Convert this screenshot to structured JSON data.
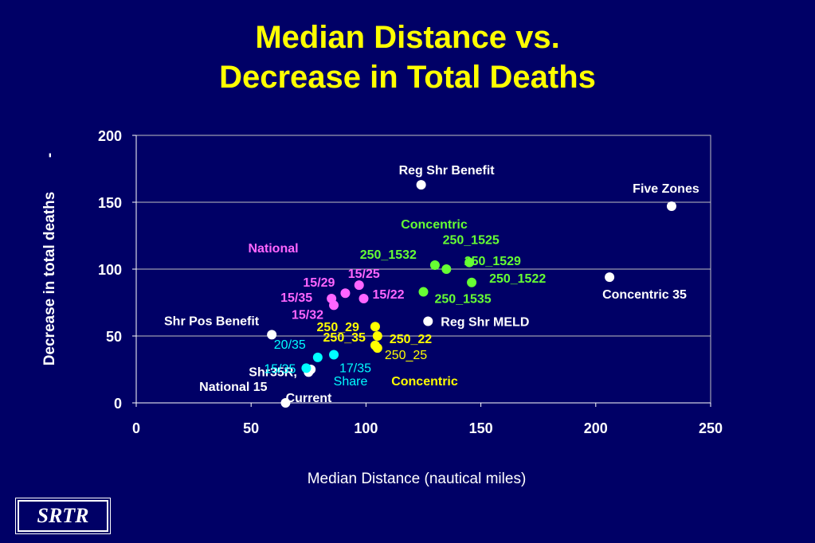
{
  "page": {
    "title_line1": "Median Distance vs.",
    "title_line2": "Decrease in Total Deaths",
    "logo_text": "SRTR",
    "background": "#000066"
  },
  "chart_data": {
    "type": "scatter",
    "title": "Median Distance vs. Decrease in Total Deaths",
    "xlabel": "Median Distance (nautical miles)",
    "ylabel": "Decrease in total deaths",
    "ylabel_suffix": "-",
    "xlim": [
      0,
      250
    ],
    "ylim": [
      0,
      200
    ],
    "x_ticks": [
      0,
      50,
      100,
      150,
      200,
      250
    ],
    "y_ticks": [
      0,
      50,
      100,
      150,
      200
    ],
    "grid": "horizontal",
    "legend": "none",
    "group_labels": [
      {
        "text": "National",
        "color": "#ff66ff"
      },
      {
        "text": "Concentric",
        "color": "#66ff33"
      },
      {
        "text": "Concentric",
        "color": "#ffff00"
      },
      {
        "text": "Share",
        "color": "#00ffff"
      }
    ],
    "colors": {
      "white": "#ffffff",
      "magenta": "#ff66ff",
      "green": "#66ff33",
      "yellow": "#ffff00",
      "cyan": "#00ffff"
    },
    "points": [
      {
        "x": 124,
        "y": 163,
        "color": "white",
        "label": "Reg Shr Benefit"
      },
      {
        "x": 233,
        "y": 147,
        "color": "white",
        "label": "Five Zones"
      },
      {
        "x": 206,
        "y": 94,
        "color": "white",
        "label": "Concentric 35"
      },
      {
        "x": 127,
        "y": 61,
        "color": "white",
        "label": "Reg Shr MELD"
      },
      {
        "x": 59,
        "y": 51,
        "color": "white",
        "label": "Shr Pos Benefit"
      },
      {
        "x": 65,
        "y": 0,
        "color": "white",
        "label": "Current"
      },
      {
        "x": 75,
        "y": 23,
        "color": "white",
        "label": "Shr35R,"
      },
      {
        "x": 76,
        "y": 25,
        "color": "white",
        "label": "National 15"
      },
      {
        "x": 145,
        "y": 105,
        "color": "green",
        "label": "250_1525"
      },
      {
        "x": 130,
        "y": 103,
        "color": "green",
        "label": "250_1532"
      },
      {
        "x": 135,
        "y": 100,
        "color": "green",
        "label": "250_1529"
      },
      {
        "x": 146,
        "y": 90,
        "color": "green",
        "label": "250_1522"
      },
      {
        "x": 125,
        "y": 83,
        "color": "green",
        "label": "250_1535"
      },
      {
        "x": 97,
        "y": 88,
        "color": "magenta",
        "label": "15/25"
      },
      {
        "x": 91,
        "y": 82,
        "color": "magenta",
        "label": "15/29"
      },
      {
        "x": 99,
        "y": 78,
        "color": "magenta",
        "label": "15/22"
      },
      {
        "x": 85,
        "y": 78,
        "color": "magenta",
        "label": "15/35"
      },
      {
        "x": 86,
        "y": 73,
        "color": "magenta",
        "label": "15/32"
      },
      {
        "x": 104,
        "y": 57,
        "color": "yellow",
        "label": "250_29"
      },
      {
        "x": 105,
        "y": 50,
        "color": "yellow",
        "label": "250_22"
      },
      {
        "x": 104,
        "y": 43,
        "color": "yellow",
        "label": "250_35"
      },
      {
        "x": 105,
        "y": 41,
        "color": "yellow",
        "label": "250_25"
      },
      {
        "x": 79,
        "y": 34,
        "color": "cyan",
        "label": "20/35"
      },
      {
        "x": 86,
        "y": 36,
        "color": "cyan",
        "label": "17/35"
      },
      {
        "x": 74,
        "y": 26,
        "color": "cyan",
        "label": "15/35"
      }
    ]
  }
}
